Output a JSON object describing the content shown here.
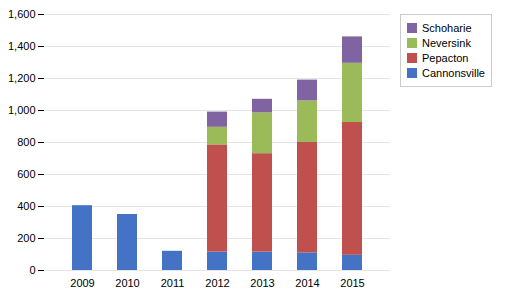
{
  "chart_data": {
    "type": "bar",
    "stacked": true,
    "categories": [
      "2009",
      "2010",
      "2011",
      "2012",
      "2013",
      "2014",
      "2015"
    ],
    "series": [
      {
        "name": "Cannonsville",
        "color": "#4472C4",
        "values": [
          405,
          350,
          120,
          115,
          115,
          110,
          95
        ]
      },
      {
        "name": "Pepacton",
        "color": "#C0504D",
        "values": [
          0,
          0,
          0,
          670,
          615,
          690,
          830
        ]
      },
      {
        "name": "Neversink",
        "color": "#9BBB59",
        "values": [
          0,
          0,
          0,
          110,
          255,
          260,
          370
        ]
      },
      {
        "name": "Schoharie",
        "color": "#8064A2",
        "values": [
          0,
          0,
          0,
          95,
          85,
          130,
          165
        ]
      }
    ],
    "ylim": [
      0,
      1600
    ],
    "yticks": [
      0,
      200,
      400,
      600,
      800,
      1000,
      1200,
      1400,
      1600
    ],
    "grid": true,
    "legend": "right"
  }
}
